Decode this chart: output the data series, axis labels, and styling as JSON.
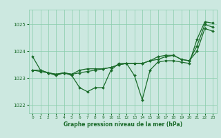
{
  "background_color": "#cce8e0",
  "grid_color": "#88ccaa",
  "line_color": "#1a6b2a",
  "xlabel": "Graphe pression niveau de la mer (hPa)",
  "ylim": [
    1021.7,
    1025.55
  ],
  "xlim": [
    -0.5,
    23.5
  ],
  "yticks": [
    1022,
    1023,
    1024,
    1025
  ],
  "xticks": [
    0,
    1,
    2,
    3,
    4,
    5,
    6,
    7,
    8,
    9,
    10,
    11,
    12,
    13,
    14,
    15,
    16,
    17,
    18,
    19,
    20,
    21,
    22,
    23
  ],
  "series": [
    [
      1023.8,
      1023.3,
      1023.2,
      1023.1,
      1023.2,
      1023.1,
      1022.65,
      1022.5,
      1022.65,
      1022.65,
      1023.3,
      1023.55,
      1023.55,
      1023.1,
      1022.2,
      1023.3,
      1023.6,
      1023.65,
      1023.65,
      1023.6,
      1023.55,
      1024.45,
      1025.1,
      1025.05
    ],
    [
      1023.3,
      1023.3,
      1023.2,
      1023.15,
      1023.2,
      1023.15,
      1023.3,
      1023.35,
      1023.35,
      1023.35,
      1023.4,
      1023.5,
      1023.55,
      1023.55,
      1023.55,
      1023.65,
      1023.7,
      1023.8,
      1023.85,
      1023.7,
      1023.65,
      1024.2,
      1025.0,
      1024.9
    ],
    [
      1023.3,
      1023.25,
      1023.2,
      1023.15,
      1023.2,
      1023.15,
      1023.2,
      1023.25,
      1023.3,
      1023.35,
      1023.4,
      1023.5,
      1023.55,
      1023.55,
      1023.55,
      1023.65,
      1023.8,
      1023.85,
      1023.85,
      1023.7,
      1023.65,
      1024.0,
      1024.85,
      1024.75
    ]
  ],
  "figsize": [
    3.2,
    2.0
  ],
  "dpi": 100
}
